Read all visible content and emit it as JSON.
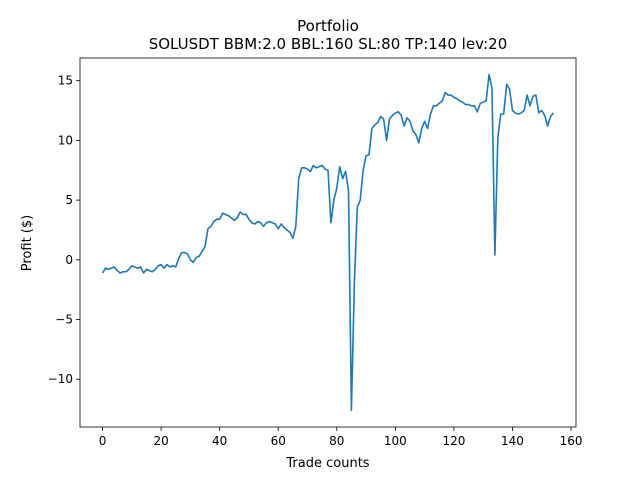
{
  "chart_data": {
    "type": "line",
    "title": "Portfolio",
    "subtitle": "SOLUSDT BBM:2.0 BBL:160 SL:80 TP:140 lev:20",
    "xlabel": "Trade counts",
    "ylabel": "Profit ($)",
    "color": "#1f77b4",
    "xlim": [
      -7.7,
      161.7
    ],
    "ylim": [
      -14.0,
      16.9
    ],
    "xticks": [
      0,
      20,
      40,
      60,
      80,
      100,
      120,
      140,
      160
    ],
    "yticks": [
      {
        "value": -10,
        "label": "−10"
      },
      {
        "value": -5,
        "label": "−5"
      },
      0,
      5,
      10,
      15
    ],
    "values": [
      -1.1,
      -0.7,
      -0.8,
      -0.7,
      -0.6,
      -0.9,
      -1.1,
      -1.0,
      -1.0,
      -0.8,
      -0.5,
      -0.6,
      -0.7,
      -0.6,
      -1.1,
      -0.8,
      -0.9,
      -1.0,
      -0.8,
      -0.5,
      -0.4,
      -0.7,
      -0.4,
      -0.6,
      -0.5,
      -0.6,
      0.1,
      0.6,
      0.6,
      0.5,
      0.0,
      -0.2,
      0.2,
      0.3,
      0.7,
      1.1,
      2.6,
      2.8,
      3.2,
      3.4,
      3.4,
      3.9,
      3.8,
      3.7,
      3.5,
      3.3,
      3.5,
      4.0,
      3.8,
      3.8,
      3.4,
      3.1,
      3.0,
      3.2,
      3.1,
      2.8,
      3.1,
      3.2,
      3.1,
      3.0,
      2.6,
      3.0,
      2.7,
      2.5,
      2.3,
      1.8,
      2.8,
      6.8,
      7.7,
      7.7,
      7.6,
      7.4,
      7.9,
      7.7,
      7.8,
      7.9,
      7.6,
      7.5,
      3.1,
      5.0,
      6.0,
      7.8,
      6.8,
      7.4,
      5.8,
      -12.6,
      -2.0,
      4.4,
      5.0,
      7.5,
      8.7,
      8.8,
      11.0,
      11.3,
      11.5,
      12.0,
      11.8,
      10.0,
      11.8,
      12.1,
      12.3,
      12.4,
      12.1,
      11.2,
      11.9,
      11.6,
      10.8,
      10.5,
      9.8,
      11.0,
      11.6,
      11.0,
      12.2,
      12.9,
      12.9,
      13.1,
      13.3,
      14.0,
      13.8,
      13.8,
      13.6,
      13.5,
      13.3,
      13.2,
      13.0,
      13.0,
      12.9,
      12.9,
      12.4,
      13.1,
      13.2,
      13.3,
      15.5,
      14.4,
      0.4,
      10.2,
      12.2,
      12.2,
      14.7,
      14.3,
      12.5,
      12.3,
      12.2,
      12.3,
      12.5,
      13.8,
      12.9,
      13.7,
      13.8,
      12.3,
      12.5,
      12.1,
      11.2,
      12.0,
      12.3
    ]
  }
}
